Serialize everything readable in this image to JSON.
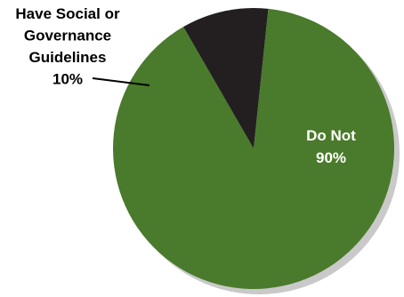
{
  "chart_data": {
    "type": "pie",
    "slices": [
      {
        "label_lines": [
          "Have Social or",
          "Governance",
          "Guidelines",
          "10%"
        ],
        "value": 10,
        "color": "#231f20"
      },
      {
        "label_lines": [
          "Do Not",
          "90%"
        ],
        "value": 90,
        "color": "#4a7a2b"
      }
    ],
    "shadow_color": "#c9c9c9",
    "inside_label_color": "#ffffff",
    "outside_label_color": "#000000",
    "leader_line_color": "#000000"
  }
}
